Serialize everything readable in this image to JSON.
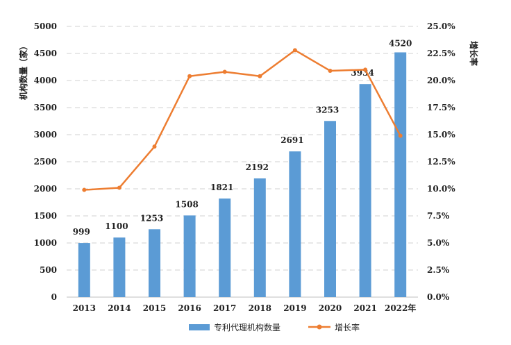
{
  "chart_data": {
    "type": "bar",
    "categories": [
      "2013",
      "2014",
      "2015",
      "2016",
      "2017",
      "2018",
      "2019",
      "2020",
      "2021",
      "2022年"
    ],
    "series": [
      {
        "name": "专利代理机构数量",
        "type": "bar",
        "axis": "left",
        "color": "#5b9bd5",
        "values": [
          999,
          1100,
          1253,
          1508,
          1821,
          2192,
          2691,
          3253,
          3934,
          4520
        ],
        "labels": [
          "999",
          "1100",
          "1253",
          "1508",
          "1821",
          "2192",
          "2691",
          "3253",
          "3934",
          "4520"
        ]
      },
      {
        "name": "增长率",
        "type": "line",
        "axis": "right",
        "color": "#ed7d31",
        "values": [
          9.9,
          10.1,
          13.9,
          20.4,
          20.8,
          20.4,
          22.8,
          20.9,
          21.0,
          14.9
        ]
      }
    ],
    "ylabel": "机构数量（家）",
    "y2label": "增长率",
    "ylim": [
      0,
      5000
    ],
    "y2lim": [
      0,
      25
    ],
    "yticks": [
      "0",
      "500",
      "1000",
      "1500",
      "2000",
      "2500",
      "3000",
      "3500",
      "4000",
      "4500",
      "5000"
    ],
    "y2ticks": [
      "0.0%",
      "2.5%",
      "5.0%",
      "7.5%",
      "10.0%",
      "12.5%",
      "15.0%",
      "17.5%",
      "20.0%",
      "22.5%",
      "25.0%"
    ],
    "highlight": {
      "index": 9,
      "color": "#ff0000"
    },
    "grid": "horizontal-dashed",
    "legend_position": "bottom"
  }
}
